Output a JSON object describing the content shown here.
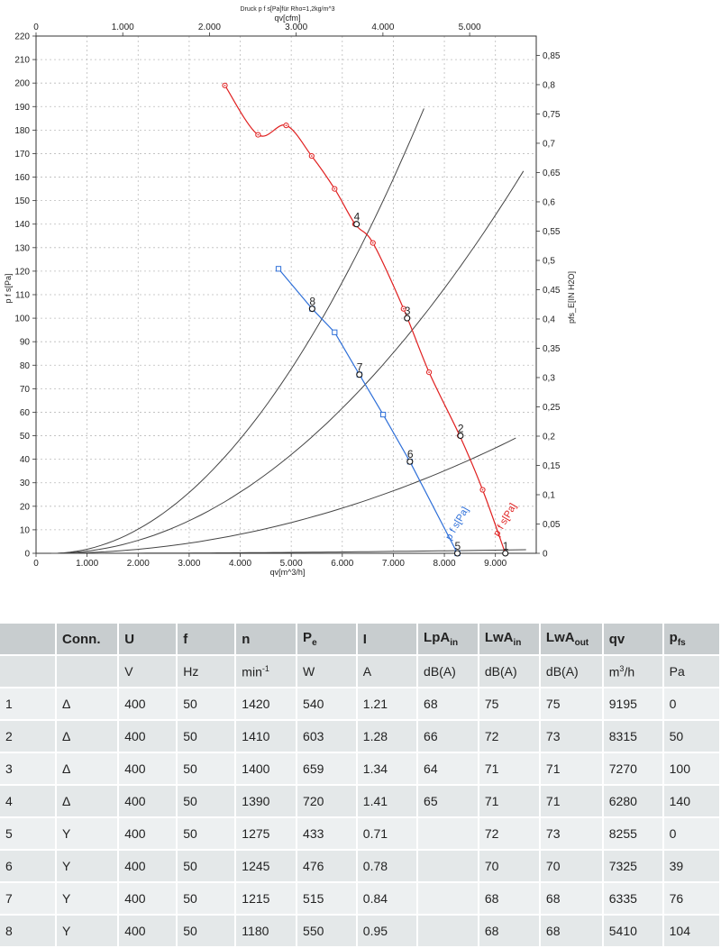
{
  "header": {
    "title": "Druck p f s[Pa]für Rho=1,2kg/m^3"
  },
  "chart_data": {
    "type": "line",
    "xlabel": "qv[m^3/h]",
    "x2label": "qv[cfm]",
    "ylabel": "p f s[Pa]",
    "y2label": "pfs_E[IN H2O]",
    "xlim": [
      0,
      9800
    ],
    "ylim": [
      0,
      220
    ],
    "x2lim": [
      0,
      5768
    ],
    "y2lim": [
      0,
      0.883
    ],
    "xticks": [
      0,
      1000,
      2000,
      3000,
      4000,
      5000,
      6000,
      7000,
      8000,
      9000
    ],
    "xtick_labels": [
      "0",
      "1.000",
      "2.000",
      "3.000",
      "4.000",
      "5.000",
      "6.000",
      "7.000",
      "8.000",
      "9.000"
    ],
    "x2ticks": [
      0,
      1000,
      2000,
      3000,
      4000,
      5000
    ],
    "x2tick_labels": [
      "0",
      "1.000",
      "2.000",
      "3.000",
      "4.000",
      "5.000"
    ],
    "yticks": [
      0,
      10,
      20,
      30,
      40,
      50,
      60,
      70,
      80,
      90,
      100,
      110,
      120,
      130,
      140,
      150,
      160,
      170,
      180,
      190,
      200,
      210,
      220
    ],
    "y2ticks": [
      0,
      0.05,
      0.1,
      0.15,
      0.2,
      0.25,
      0.3,
      0.35,
      0.4,
      0.45,
      0.5,
      0.55,
      0.6,
      0.65,
      0.7,
      0.75,
      0.8,
      0.85
    ],
    "y2tick_labels": [
      "0",
      "0,05",
      "0,1",
      "0,15",
      "0,2",
      "0,25",
      "0,3",
      "0,35",
      "0,4",
      "0,45",
      "0,5",
      "0,55",
      "0,6",
      "0,65",
      "0,7",
      "0,75",
      "0,8",
      "0,85"
    ],
    "grid": true,
    "series": [
      {
        "name": "p f s[Pa]",
        "color": "#e02020",
        "marker": "circle",
        "x": [
          3700,
          4350,
          4900,
          5400,
          5850,
          6250,
          6600,
          7200,
          7700,
          8300,
          8750,
          9195
        ],
        "y": [
          199,
          178,
          182,
          169,
          155,
          140,
          132,
          104,
          77,
          50,
          27,
          0
        ]
      },
      {
        "name": "p f s[Pa]",
        "color": "#2e6fd8",
        "marker": "square",
        "x": [
          4750,
          5410,
          5850,
          6335,
          6800,
          7325,
          8255
        ],
        "y": [
          121,
          104,
          94,
          76,
          59,
          39,
          0
        ]
      }
    ],
    "system_curves": [
      {
        "x": [
          300,
          1500,
          2500,
          3500,
          4500,
          5500,
          6300,
          7000,
          7600
        ],
        "y": [
          0,
          3.8,
          10.5,
          21,
          33,
          50,
          66,
          81,
          95
        ],
        "coef": 3.55e-06
      },
      {
        "x": [
          300,
          2000,
          3500,
          5000,
          6500,
          7500,
          8500,
          9550
        ],
        "y": [
          0,
          4.6,
          14,
          29,
          49,
          65,
          84,
          106
        ],
        "coef": 1.9e-06
      },
      {
        "x": [
          300,
          3000,
          5000,
          6500,
          7500,
          8500,
          9400
        ],
        "y": [
          0,
          5.2,
          14.5,
          24.5,
          32.5,
          41.5,
          50.5
        ],
        "coef": 5.92e-07
      },
      {
        "x": [
          300,
          5000,
          8000,
          9600
        ],
        "y": [
          0,
          0.7,
          1.2,
          1.6
        ],
        "coef": 1.78e-08
      }
    ],
    "operating_points": [
      {
        "label": "1",
        "x": 9195,
        "y": 0
      },
      {
        "label": "2",
        "x": 8315,
        "y": 50
      },
      {
        "label": "3",
        "x": 7270,
        "y": 100
      },
      {
        "label": "4",
        "x": 6280,
        "y": 140
      },
      {
        "label": "5",
        "x": 8255,
        "y": 0
      },
      {
        "label": "6",
        "x": 7325,
        "y": 39
      },
      {
        "label": "7",
        "x": 6335,
        "y": 76
      },
      {
        "label": "8",
        "x": 5410,
        "y": 104
      }
    ],
    "annotations": [
      "p f s[Pa]",
      "p f s[Pa]"
    ]
  },
  "table": {
    "headers": [
      "",
      "Conn.",
      "U",
      "f",
      "n",
      "P",
      "I",
      "LpA",
      "LwA",
      "LwA",
      "qv",
      "p"
    ],
    "header_subs": [
      "",
      "",
      "",
      "",
      "",
      "e",
      "",
      "in",
      "in",
      "out",
      "",
      "fs"
    ],
    "units": [
      "",
      "",
      "V",
      "Hz",
      "min",
      "W",
      "A",
      "dB(A)",
      "dB(A)",
      "dB(A)",
      "m",
      "Pa"
    ],
    "unit_sups": [
      "",
      "",
      "",
      "",
      "-1",
      "",
      "",
      "",
      "",
      "",
      "3",
      ""
    ],
    "unit_suffix": [
      "",
      "",
      "",
      "",
      "",
      "",
      "",
      "",
      "",
      "",
      "/h",
      ""
    ],
    "rows": [
      [
        "1",
        "Δ",
        "400",
        "50",
        "1420",
        "540",
        "1.21",
        "68",
        "75",
        "75",
        "9195",
        "0"
      ],
      [
        "2",
        "Δ",
        "400",
        "50",
        "1410",
        "603",
        "1.28",
        "66",
        "72",
        "73",
        "8315",
        "50"
      ],
      [
        "3",
        "Δ",
        "400",
        "50",
        "1400",
        "659",
        "1.34",
        "64",
        "71",
        "71",
        "7270",
        "100"
      ],
      [
        "4",
        "Δ",
        "400",
        "50",
        "1390",
        "720",
        "1.41",
        "65",
        "71",
        "71",
        "6280",
        "140"
      ],
      [
        "5",
        "Y",
        "400",
        "50",
        "1275",
        "433",
        "0.71",
        "",
        "72",
        "73",
        "8255",
        "0"
      ],
      [
        "6",
        "Y",
        "400",
        "50",
        "1245",
        "476",
        "0.78",
        "",
        "70",
        "70",
        "7325",
        "39"
      ],
      [
        "7",
        "Y",
        "400",
        "50",
        "1215",
        "515",
        "0.84",
        "",
        "68",
        "68",
        "6335",
        "76"
      ],
      [
        "8",
        "Y",
        "400",
        "50",
        "1180",
        "550",
        "0.95",
        "",
        "68",
        "68",
        "5410",
        "104"
      ]
    ]
  }
}
